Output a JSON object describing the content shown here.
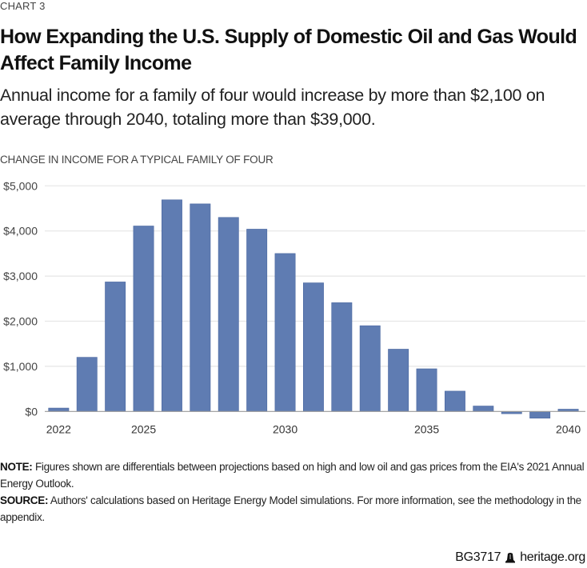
{
  "kicker": "CHART 3",
  "title": "How Expanding the U.S. Supply of Domestic Oil and Gas Would Affect Family Income",
  "subtitle": "Annual income for a family of four would increase by more than $2,100 on average through 2040, totaling more than $39,000.",
  "notes": {
    "note_label": "NOTE:",
    "note_text": " Figures shown are differentials between projections based on high and low oil and gas prices from the EIA's 2021 Annual Energy Outlook.",
    "source_label": "SOURCE:",
    "source_text": " Authors' calculations based on Heritage Energy Model simulations. For more information, see the methodology in the appendix."
  },
  "credit": {
    "report_id": "BG3717",
    "icon": "liberty-bell-icon",
    "site": "heritage.org"
  },
  "colors": {
    "bar": "#5f7cb2",
    "bar_edge": "#4a67a0",
    "grid": "#e6e6e6",
    "axis": "#9a9a9a"
  },
  "chart_data": {
    "type": "bar",
    "title": "How Expanding the U.S. Supply of Domestic Oil and Gas Would Affect Family Income",
    "ylabel": "CHANGE IN INCOME FOR A TYPICAL FAMILY OF FOUR",
    "xlabel": "",
    "categories": [
      "2022",
      "2023",
      "2024",
      "2025",
      "2026",
      "2027",
      "2028",
      "2029",
      "2030",
      "2031",
      "2032",
      "2033",
      "2034",
      "2035",
      "2036",
      "2037",
      "2038",
      "2039",
      "2040"
    ],
    "values": [
      75,
      1200,
      2870,
      4110,
      4690,
      4600,
      4300,
      4040,
      3500,
      2850,
      2410,
      1900,
      1380,
      945,
      450,
      120,
      -50,
      -150,
      50
    ],
    "ylim": [
      0,
      5000
    ],
    "yticks": [
      0,
      1000,
      2000,
      3000,
      4000,
      5000
    ],
    "ytick_labels": [
      "$0",
      "$1,000",
      "$2,000",
      "$3,000",
      "$4,000",
      "$5,000"
    ],
    "xtick_labels": [
      {
        "category": "2022",
        "label": "2022"
      },
      {
        "category": "2025",
        "label": "2025"
      },
      {
        "category": "2030",
        "label": "2030"
      },
      {
        "category": "2035",
        "label": "2035"
      },
      {
        "category": "2040",
        "label": "2040"
      }
    ],
    "grid": true,
    "legend": "none"
  }
}
